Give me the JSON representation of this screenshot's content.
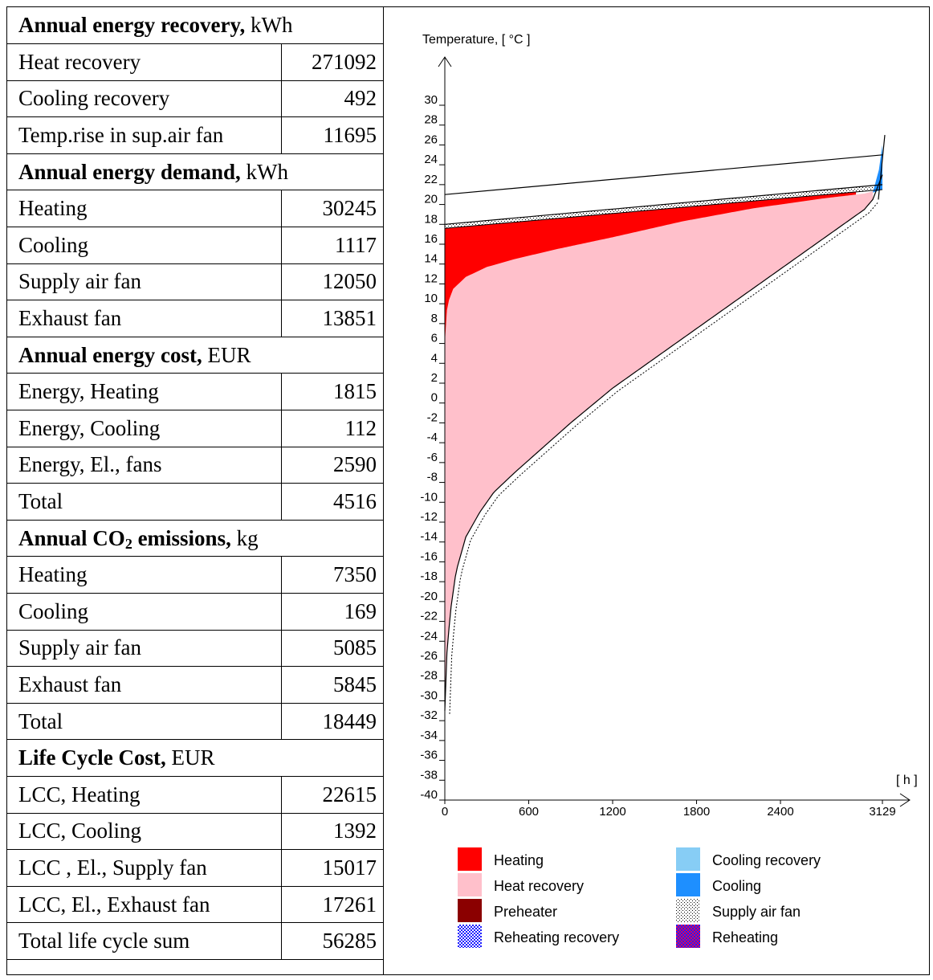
{
  "sections": [
    {
      "title": "Annual energy recovery,",
      "unit": "kWh",
      "rows": [
        {
          "label": "Heat recovery",
          "value": "271092"
        },
        {
          "label": "Cooling recovery",
          "value": "492"
        },
        {
          "label": "Temp.rise in sup.air fan",
          "value": "11695"
        }
      ]
    },
    {
      "title": "Annual energy demand,",
      "unit": "kWh",
      "rows": [
        {
          "label": "Heating",
          "value": "30245"
        },
        {
          "label": "Cooling",
          "value": "1117"
        },
        {
          "label": "Supply air fan",
          "value": "12050"
        },
        {
          "label": "Exhaust fan",
          "value": "13851"
        }
      ]
    },
    {
      "title": "Annual energy cost,",
      "unit": "EUR",
      "rows": [
        {
          "label": "Energy, Heating",
          "value": "1815"
        },
        {
          "label": "Energy, Cooling",
          "value": "112"
        },
        {
          "label": "Energy, El., fans",
          "value": "2590"
        },
        {
          "label": "Total",
          "value": "4516"
        }
      ]
    },
    {
      "title": "Annual CO",
      "title_sub": "2",
      "title_suffix": " emissions,",
      "unit": "kg",
      "rows": [
        {
          "label": "Heating",
          "value": "7350"
        },
        {
          "label": "Cooling",
          "value": "169"
        },
        {
          "label": "Supply air fan",
          "value": "5085"
        },
        {
          "label": "Exhaust fan",
          "value": "5845"
        },
        {
          "label": "Total",
          "value": "18449"
        }
      ]
    },
    {
      "title": "Life Cycle Cost,",
      "unit": "EUR",
      "rows": [
        {
          "label": "LCC, Heating",
          "value": "22615"
        },
        {
          "label": "LCC, Cooling",
          "value": "1392"
        },
        {
          "label": "LCC , El., Supply fan",
          "value": "15017"
        },
        {
          "label": "LCC, El., Exhaust fan",
          "value": "17261"
        },
        {
          "label": "Total life cycle sum",
          "value": "56285"
        }
      ]
    }
  ],
  "chart_data": {
    "type": "area",
    "ylabel": "Temperature, [ °C ]",
    "xlabel": "[ h ]",
    "xlim": [
      0,
      3129
    ],
    "ylim": [
      -40,
      32
    ],
    "x_ticks": [
      "0",
      "600",
      "1200",
      "1800",
      "2400",
      "3129"
    ],
    "x_tick_values": [
      0,
      600,
      1200,
      1800,
      2400,
      3129
    ],
    "y_ticks": [
      "30",
      "28",
      "26",
      "24",
      "22",
      "20",
      "18",
      "16",
      "14",
      "12",
      "10",
      "8",
      "6",
      "4",
      "2",
      "0",
      "-2",
      "-4",
      "-6",
      "-8",
      "-10",
      "-12",
      "-14",
      "-16",
      "-18",
      "-20",
      "-22",
      "-24",
      "-26",
      "-28",
      "-30",
      "-32",
      "-34",
      "-36",
      "-38",
      "-40"
    ],
    "y_tick_values": [
      30,
      28,
      26,
      24,
      22,
      20,
      18,
      16,
      14,
      12,
      10,
      8,
      6,
      4,
      2,
      0,
      -2,
      -4,
      -6,
      -8,
      -10,
      -12,
      -14,
      -16,
      -18,
      -20,
      -22,
      -24,
      -26,
      -28,
      -30,
      -32,
      -34,
      -36,
      -38,
      -40
    ],
    "outdoor_temp_curve": {
      "x": [
        0,
        10,
        40,
        80,
        150,
        250,
        350,
        500,
        700,
        900,
        1200,
        1500,
        1800,
        2100,
        2400,
        2700,
        2900,
        3000,
        3060,
        3100,
        3129
      ],
      "y": [
        -31,
        -26,
        -21,
        -17,
        -13.5,
        -11,
        -9,
        -7,
        -4.5,
        -2,
        1.5,
        4.5,
        7.5,
        10.5,
        13.5,
        16.5,
        18.5,
        19.5,
        20.5,
        21.5,
        23
      ]
    },
    "supply_after_recovery_curve": {
      "x": [
        0,
        5,
        20,
        60,
        150,
        300,
        500,
        800,
        1200,
        1700,
        2200,
        2700,
        3000,
        3080,
        3129
      ],
      "y": [
        6,
        8,
        10,
        11.5,
        12.7,
        13.7,
        14.5,
        15.5,
        16.7,
        18.3,
        19.6,
        20.6,
        21.1,
        21.4,
        21.7
      ]
    },
    "supply_setpoint_line": {
      "x": [
        0,
        3129
      ],
      "y": [
        18,
        22
      ]
    },
    "exhaust_temp_line": {
      "x": [
        0,
        3129
      ],
      "y": [
        21,
        25
      ]
    },
    "exhaust_near_line": {
      "x": [
        0,
        3129
      ],
      "y": [
        17.6,
        21.5
      ]
    },
    "cooling_region": {
      "x_start": 3060,
      "x_end": 3129,
      "y_top": 26
    },
    "legend": [
      {
        "label": "Heating",
        "color": "#ff0000",
        "pattern": "solid"
      },
      {
        "label": "Cooling recovery",
        "color": "#87cdf5",
        "pattern": "solid"
      },
      {
        "label": "Heat recovery",
        "color": "#ffc0cb",
        "pattern": "solid"
      },
      {
        "label": "Cooling",
        "color": "#1e8fff",
        "pattern": "solid"
      },
      {
        "label": "Preheater",
        "color": "#8b0000",
        "pattern": "solid"
      },
      {
        "label": "Supply air fan",
        "color": "#ffffff",
        "pattern": "dots"
      },
      {
        "label": "Reheating recovery",
        "color": "#3c3cff",
        "pattern": "check-blue"
      },
      {
        "label": "Reheating",
        "color": "#7a1fb0",
        "pattern": "check-red"
      }
    ]
  }
}
